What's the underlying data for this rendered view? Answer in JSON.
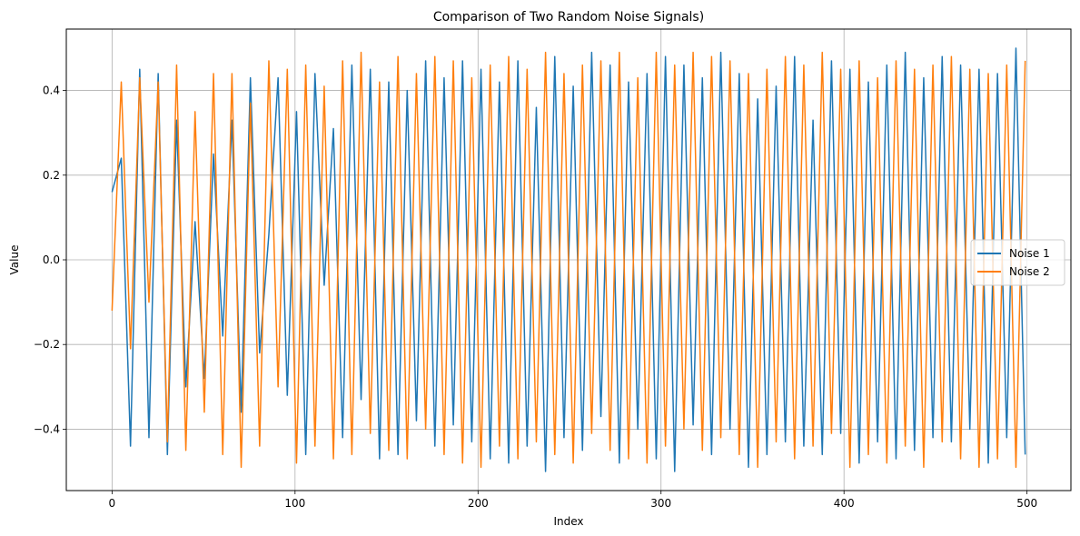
{
  "chart_data": {
    "type": "line",
    "title": "Comparison of Two Random Noise Signals)",
    "xlabel": "Index",
    "ylabel": "Value",
    "xlim": [
      -25,
      524
    ],
    "ylim": [
      -0.545,
      0.545
    ],
    "xticks": [
      0,
      100,
      200,
      300,
      400,
      500
    ],
    "xtick_labels": [
      "0",
      "100",
      "200",
      "300",
      "400",
      "500"
    ],
    "yticks": [
      -0.4,
      -0.2,
      0.0,
      0.2,
      0.4
    ],
    "ytick_labels": [
      "−0.4",
      "−0.2",
      "0.0",
      "0.2",
      "0.4"
    ],
    "grid": true,
    "legend_position": "center-right",
    "series": [
      {
        "name": "Noise 1",
        "color": "#1f77b4",
        "sampled_values": [
          0.16,
          0.24,
          -0.44,
          0.45,
          -0.42,
          0.44,
          -0.46,
          0.33,
          -0.3,
          0.09,
          -0.28,
          0.25,
          -0.18,
          0.33,
          -0.36,
          0.43,
          -0.22,
          0.06,
          0.43,
          -0.32,
          0.35,
          -0.46,
          0.44,
          -0.06,
          0.31,
          -0.42,
          0.46,
          -0.33,
          0.45,
          -0.47,
          0.42,
          -0.46,
          0.4,
          -0.38,
          0.47,
          -0.44,
          0.43,
          -0.39,
          0.47,
          -0.43,
          0.45,
          -0.47,
          0.42,
          -0.48,
          0.47,
          -0.44,
          0.36,
          -0.5,
          0.48,
          -0.42,
          0.41,
          -0.45,
          0.49,
          -0.37,
          0.46,
          -0.48,
          0.42,
          -0.4,
          0.44,
          -0.47,
          0.48,
          -0.5,
          0.46,
          -0.39,
          0.43,
          -0.46,
          0.49,
          -0.4,
          0.44,
          -0.49,
          0.38,
          -0.46,
          0.41,
          -0.43,
          0.48,
          -0.44,
          0.33,
          -0.46,
          0.47,
          -0.41,
          0.45,
          -0.48,
          0.42,
          -0.43,
          0.46,
          -0.47,
          0.49,
          -0.45,
          0.43,
          -0.42,
          0.48,
          -0.43,
          0.46,
          -0.4,
          0.45,
          -0.48,
          0.44,
          -0.42,
          0.5,
          -0.46
        ]
      },
      {
        "name": "Noise 2",
        "color": "#ff7f0e",
        "sampled_values": [
          -0.12,
          0.42,
          -0.21,
          0.43,
          -0.1,
          0.42,
          -0.43,
          0.46,
          -0.45,
          0.35,
          -0.36,
          0.44,
          -0.46,
          0.44,
          -0.49,
          0.37,
          -0.44,
          0.47,
          -0.3,
          0.45,
          -0.48,
          0.46,
          -0.44,
          0.41,
          -0.47,
          0.47,
          -0.46,
          0.49,
          -0.41,
          0.42,
          -0.45,
          0.48,
          -0.47,
          0.44,
          -0.4,
          0.48,
          -0.46,
          0.47,
          -0.48,
          0.43,
          -0.49,
          0.46,
          -0.44,
          0.48,
          -0.47,
          0.45,
          -0.43,
          0.49,
          -0.46,
          0.44,
          -0.48,
          0.46,
          -0.41,
          0.47,
          -0.45,
          0.49,
          -0.47,
          0.43,
          -0.48,
          0.49,
          -0.44,
          0.46,
          -0.4,
          0.49,
          -0.45,
          0.48,
          -0.42,
          0.47,
          -0.46,
          0.44,
          -0.49,
          0.45,
          -0.43,
          0.48,
          -0.47,
          0.46,
          -0.44,
          0.49,
          -0.41,
          0.45,
          -0.49,
          0.47,
          -0.46,
          0.43,
          -0.48,
          0.47,
          -0.44,
          0.45,
          -0.49,
          0.46,
          -0.43,
          0.48,
          -0.47,
          0.45,
          -0.49,
          0.44,
          -0.47,
          0.46,
          -0.49,
          0.47
        ]
      }
    ]
  }
}
